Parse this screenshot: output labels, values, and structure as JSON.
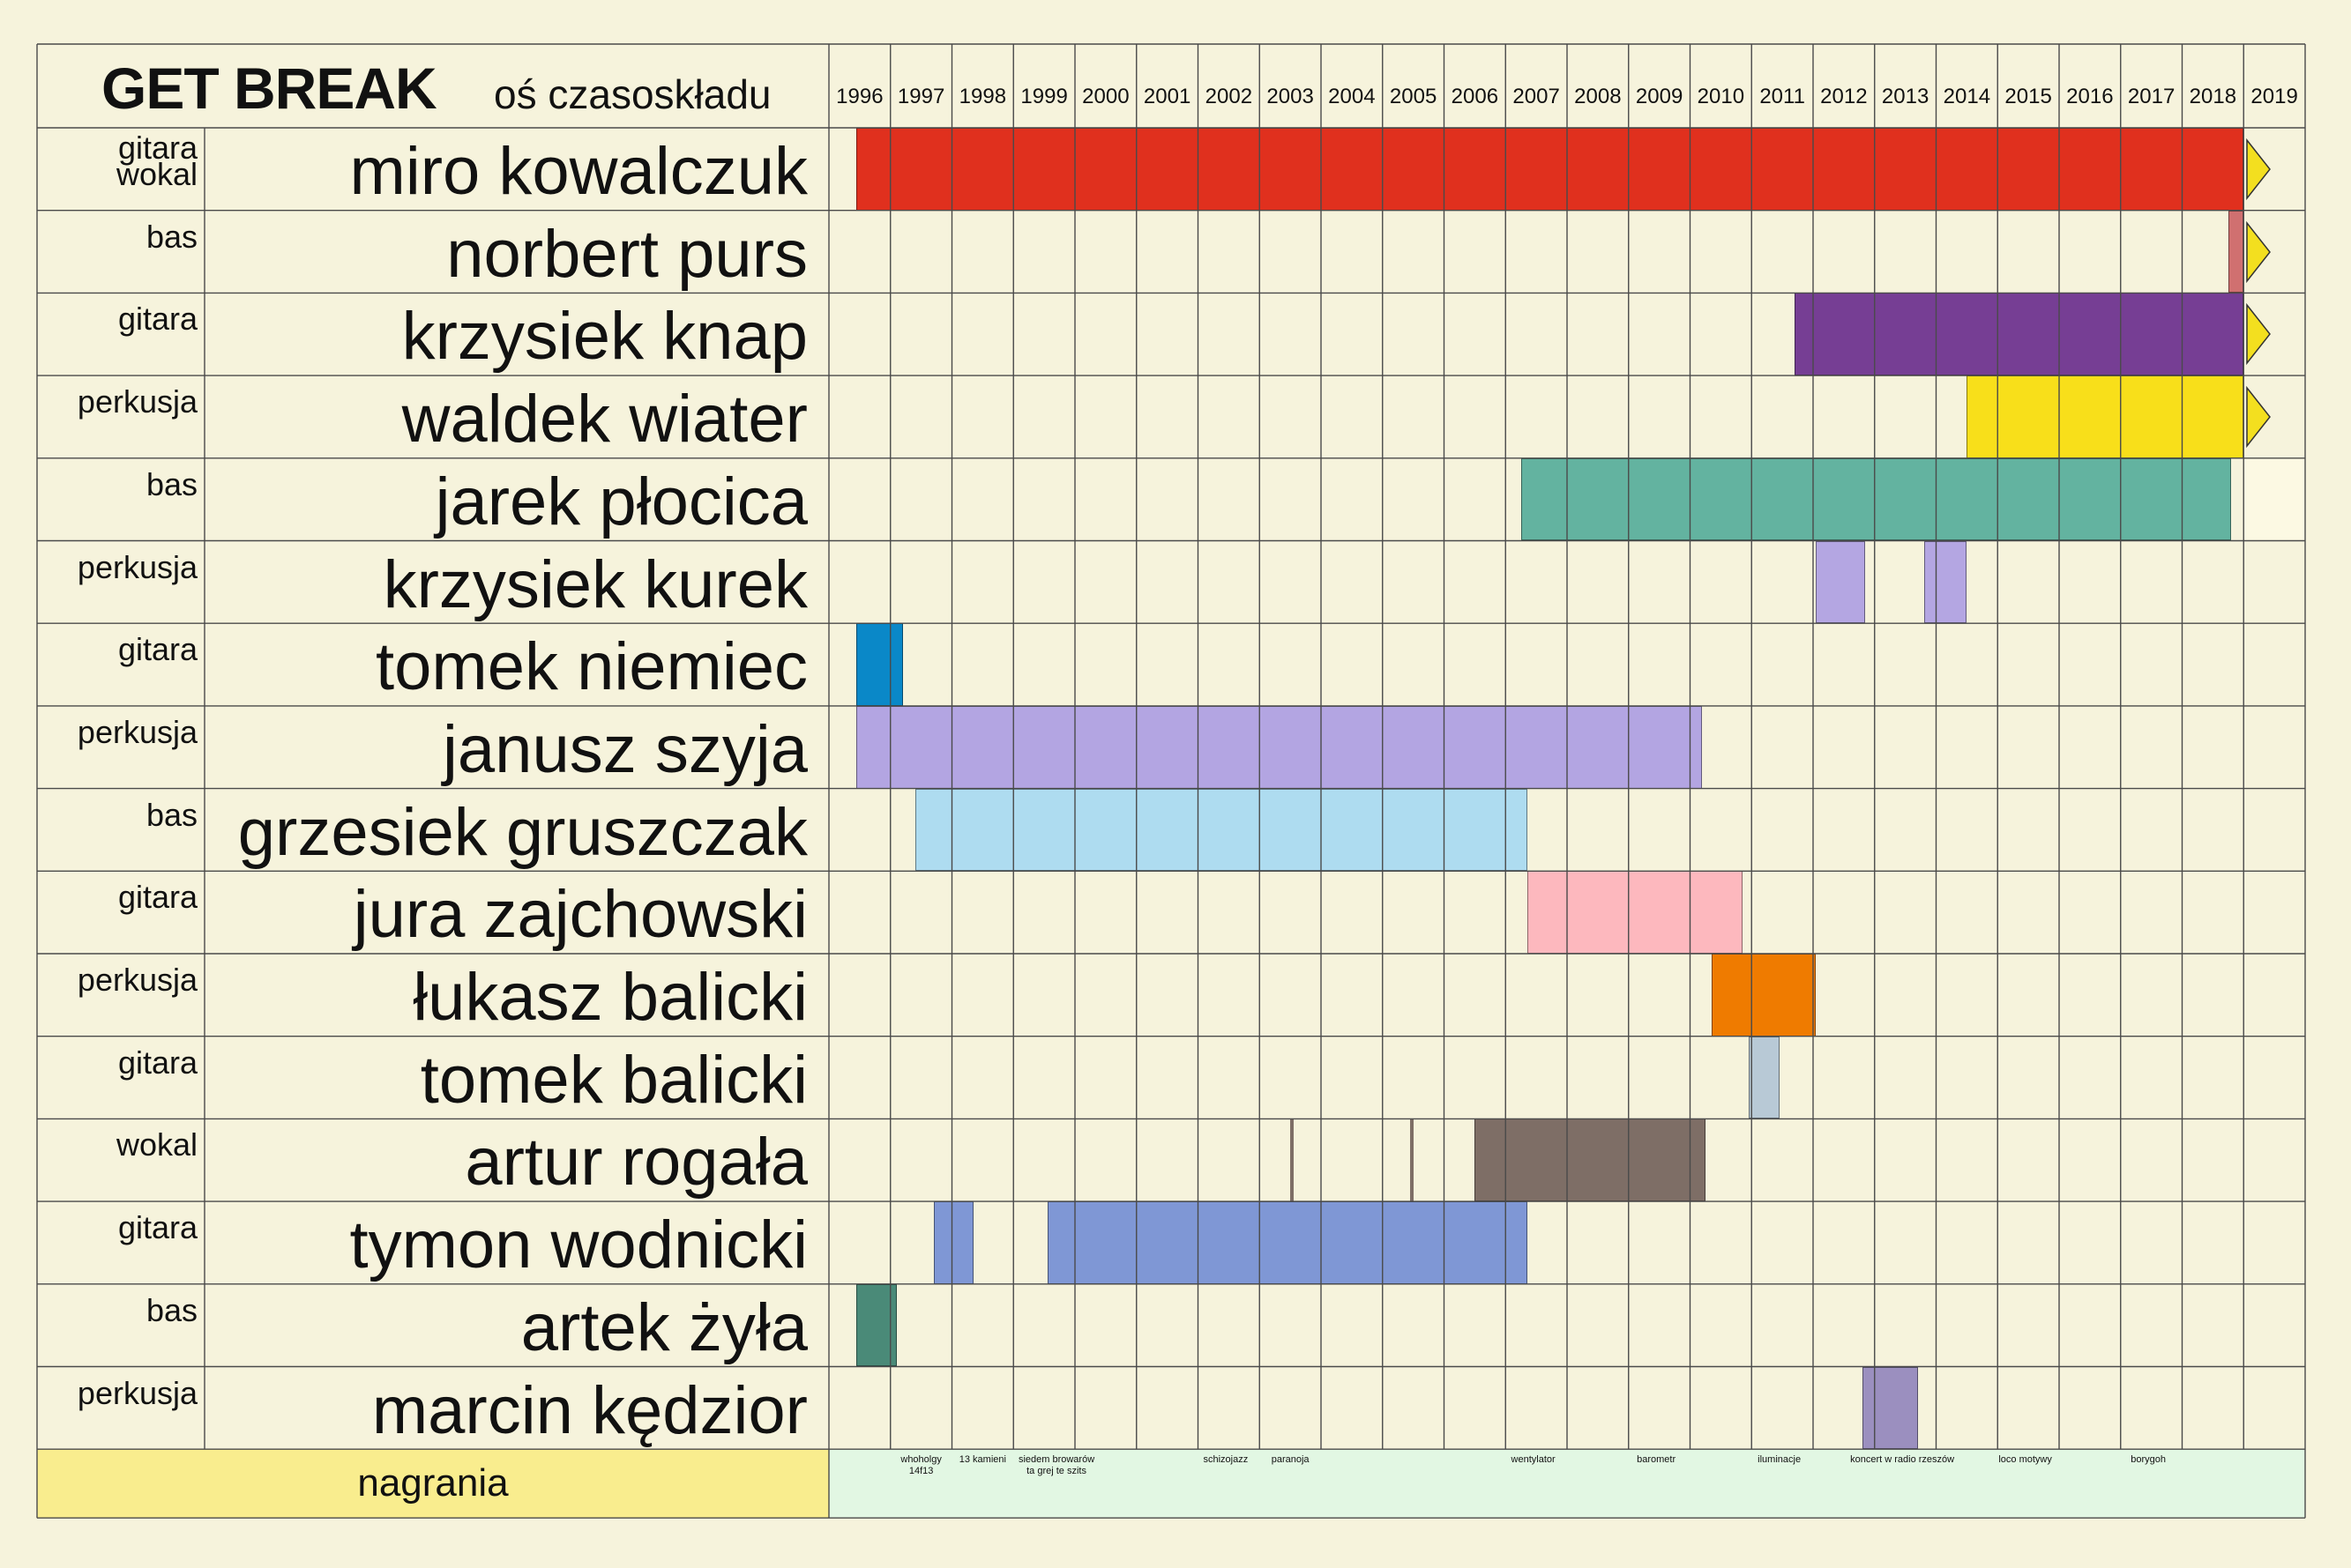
{
  "header": {
    "title": "GET BREAK",
    "subtitle": "oś czasoskładu"
  },
  "chart_data": {
    "type": "timeline",
    "years": [
      "1996",
      "1997",
      "1998",
      "1999",
      "2000",
      "2001",
      "2002",
      "2003",
      "2004",
      "2005",
      "2006",
      "2007",
      "2008",
      "2009",
      "2010",
      "2011",
      "2012",
      "2013",
      "2014",
      "2015",
      "2016",
      "2017",
      "2018",
      "2019"
    ],
    "members": [
      {
        "name": "miro kowalczuk",
        "role": [
          "gitara",
          "wokal"
        ],
        "color": "#e0301e",
        "segments": [
          [
            1996.45,
            2019.0
          ]
        ],
        "ongoing": true
      },
      {
        "name": "norbert purs",
        "role": [
          "bas"
        ],
        "color": "#d07070",
        "segments": [
          [
            2018.75,
            2019.0
          ]
        ],
        "ongoing": true
      },
      {
        "name": "krzysiek knap",
        "role": [
          "gitara"
        ],
        "color": "#763e94",
        "segments": [
          [
            2011.7,
            2019.0
          ]
        ],
        "ongoing": true
      },
      {
        "name": "waldek wiater",
        "role": [
          "perkusja"
        ],
        "color": "#f8df1a",
        "segments": [
          [
            2014.5,
            2019.0
          ]
        ],
        "ongoing": true
      },
      {
        "name": "jarek płocica",
        "role": [
          "bas"
        ],
        "color": "#63b3a0",
        "segments": [
          [
            2007.25,
            2018.8
          ]
        ],
        "ongoing": false
      },
      {
        "name": "krzysiek kurek",
        "role": [
          "perkusja"
        ],
        "color": "#b4a6e2",
        "segments": [
          [
            2012.05,
            2012.85
          ],
          [
            2013.8,
            2014.5
          ]
        ],
        "ongoing": false
      },
      {
        "name": "tomek niemiec",
        "role": [
          "gitara"
        ],
        "color": "#0a88c8",
        "segments": [
          [
            1996.45,
            1997.2
          ]
        ],
        "ongoing": false
      },
      {
        "name": "janusz szyja",
        "role": [
          "perkusja"
        ],
        "color": "#b3a5e2",
        "segments": [
          [
            1996.45,
            2010.2
          ]
        ],
        "ongoing": false
      },
      {
        "name": "grzesiek gruszczak",
        "role": [
          "bas"
        ],
        "color": "#aedcf0",
        "segments": [
          [
            1997.4,
            2007.35
          ]
        ],
        "ongoing": false
      },
      {
        "name": "jura zajchowski",
        "role": [
          "gitara"
        ],
        "color": "#fdb8be",
        "segments": [
          [
            2007.35,
            2010.85
          ]
        ],
        "ongoing": false
      },
      {
        "name": "łukasz balicki",
        "role": [
          "perkusja"
        ],
        "color": "#ef7b00",
        "segments": [
          [
            2010.35,
            2012.05
          ]
        ],
        "ongoing": false
      },
      {
        "name": "tomek balicki",
        "role": [
          "gitara"
        ],
        "color": "#b8c9d6",
        "segments": [
          [
            2010.95,
            2011.45
          ]
        ],
        "ongoing": false
      },
      {
        "name": "artur rogała",
        "role": [
          "wokal"
        ],
        "color": "#7e6e66",
        "segments": [
          [
            2003.5,
            2003.56
          ],
          [
            2005.45,
            2005.51
          ],
          [
            2006.5,
            2010.25
          ]
        ],
        "ongoing": false
      },
      {
        "name": "tymon wodnicki",
        "role": [
          "gitara"
        ],
        "color": "#7f97d5",
        "segments": [
          [
            1997.7,
            1998.35
          ],
          [
            1999.55,
            2007.35
          ]
        ],
        "ongoing": false
      },
      {
        "name": "artek żyła",
        "role": [
          "bas"
        ],
        "color": "#4a8a78",
        "segments": [
          [
            1996.45,
            1997.1
          ]
        ],
        "ongoing": false
      },
      {
        "name": "marcin kędzior",
        "role": [
          "perkusja"
        ],
        "color": "#9b8fbf",
        "segments": [
          [
            2012.8,
            2013.7
          ]
        ],
        "ongoing": false
      }
    ],
    "recordings_label": "nagrania",
    "recordings": [
      {
        "lines": [
          "whoholgy",
          "14f13"
        ],
        "year": 1997.5
      },
      {
        "lines": [
          "13 kamieni"
        ],
        "year": 1998.5
      },
      {
        "lines": [
          "siedem browarów",
          "ta grej te szits"
        ],
        "year": 1999.7
      },
      {
        "lines": [
          "schizojazz"
        ],
        "year": 2002.45
      },
      {
        "lines": [
          "paranoja"
        ],
        "year": 2003.5
      },
      {
        "lines": [
          "wentylator"
        ],
        "year": 2007.45
      },
      {
        "lines": [
          "barometr"
        ],
        "year": 2009.45
      },
      {
        "lines": [
          "iluminacje"
        ],
        "year": 2011.45
      },
      {
        "lines": [
          "koncert w radio rzeszów"
        ],
        "year": 2013.45
      },
      {
        "lines": [
          "loco motywy"
        ],
        "year": 2015.45
      },
      {
        "lines": [
          "borygoh"
        ],
        "year": 2017.45
      }
    ],
    "colors": {
      "background": "#f6f3dc",
      "grid": "#4a4a4a",
      "recordings_label_bg": "#f9ed8e",
      "recordings_area_bg": "#e2f7e3",
      "arrow": "#f3df1f",
      "pending_end": "#fcf9e3"
    }
  }
}
